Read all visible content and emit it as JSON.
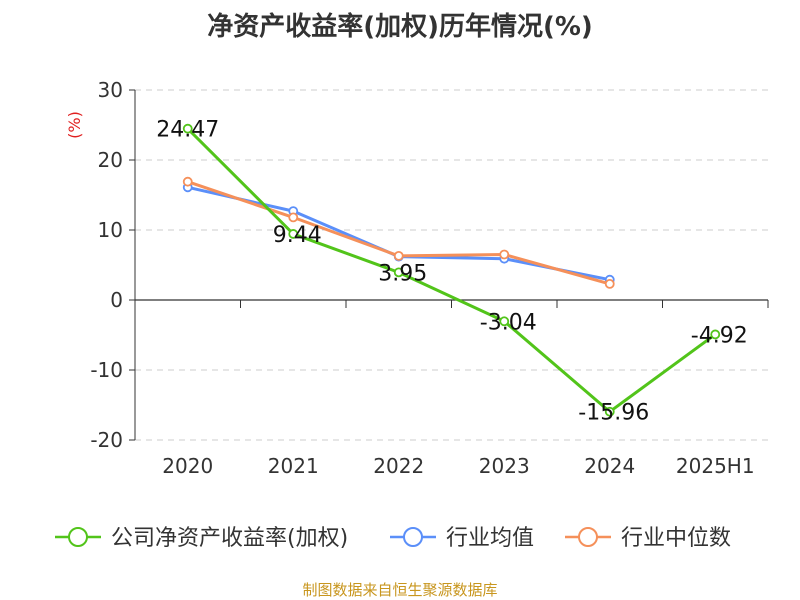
{
  "chart_data": {
    "type": "line",
    "title": "净资产收益率(加权)历年情况(%)",
    "unit_label": "(%)",
    "categories": [
      "2020",
      "2021",
      "2022",
      "2023",
      "2024",
      "2025H1"
    ],
    "ylim": [
      -20,
      30
    ],
    "yticks": [
      -20,
      -10,
      0,
      10,
      20,
      30
    ],
    "grid": true,
    "legend_position": "bottom",
    "series": [
      {
        "name": "公司净资产收益率(加权)",
        "color": "#52c41a",
        "values": [
          24.47,
          9.44,
          3.95,
          -3.04,
          -15.96,
          -4.92
        ],
        "data_labels": [
          "24.47",
          "9.44",
          "3.95",
          "-3.04",
          "-15.96",
          "-4.92"
        ]
      },
      {
        "name": "行业均值",
        "color": "#5b8ff9",
        "values": [
          16.1,
          12.7,
          6.2,
          5.9,
          2.9,
          null
        ]
      },
      {
        "name": "行业中位数",
        "color": "#f5905a",
        "values": [
          16.9,
          11.8,
          6.3,
          6.5,
          2.3,
          null
        ]
      }
    ],
    "source": "制图数据来自恒生聚源数据库"
  }
}
